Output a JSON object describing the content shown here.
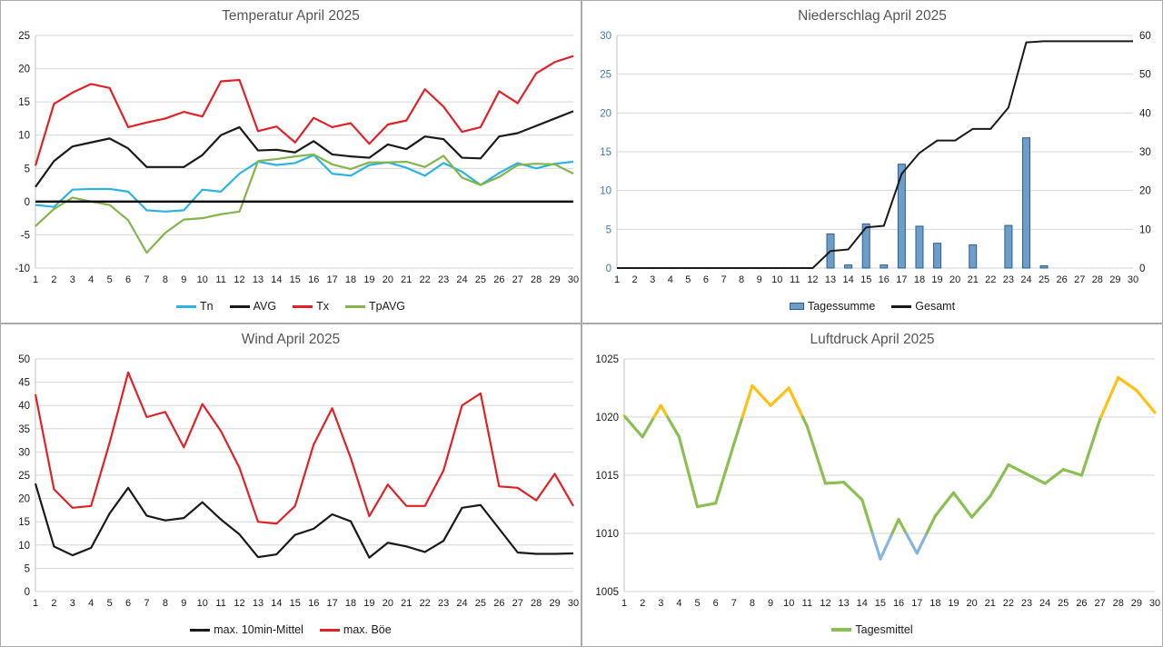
{
  "chart_data": [
    {
      "type": "line",
      "title": "Temperatur April 2025",
      "categories": [
        1,
        2,
        3,
        4,
        5,
        6,
        7,
        8,
        9,
        10,
        11,
        12,
        13,
        14,
        15,
        16,
        17,
        18,
        19,
        20,
        21,
        22,
        23,
        24,
        25,
        26,
        27,
        28,
        29,
        30
      ],
      "ylim": [
        -10,
        25
      ],
      "ystep": 5,
      "zero_line": true,
      "grid": true,
      "legend_position": "bottom",
      "series": [
        {
          "name": "Tn",
          "color": "#2bb4e0",
          "values": [
            -0.5,
            -0.8,
            1.8,
            1.9,
            1.9,
            1.5,
            -1.3,
            -1.5,
            -1.3,
            1.8,
            1.5,
            4.2,
            6.0,
            5.5,
            5.8,
            7.0,
            4.2,
            3.9,
            5.5,
            5.9,
            5.1,
            3.9,
            5.8,
            4.5,
            2.5,
            4.3,
            5.8,
            5.0,
            5.7,
            6.0
          ]
        },
        {
          "name": "AVG",
          "color": "#1a1a1a",
          "values": [
            2.2,
            6.1,
            8.3,
            8.9,
            9.5,
            8.0,
            5.2,
            5.2,
            5.2,
            7.0,
            10.0,
            11.2,
            7.7,
            7.8,
            7.4,
            9.1,
            7.1,
            6.8,
            6.6,
            8.6,
            7.9,
            9.8,
            9.4,
            6.6,
            6.5,
            9.8,
            10.3,
            11.4,
            12.5,
            13.6
          ]
        },
        {
          "name": "Tx",
          "color": "#e02227",
          "values": [
            5.4,
            14.7,
            16.4,
            17.7,
            17.1,
            11.2,
            11.9,
            12.5,
            13.5,
            12.8,
            18.1,
            18.3,
            10.6,
            11.3,
            8.9,
            12.6,
            11.2,
            11.8,
            8.7,
            11.6,
            12.2,
            16.9,
            14.3,
            10.5,
            11.2,
            16.6,
            14.8,
            19.3,
            21.0,
            21.9
          ]
        },
        {
          "name": "TpAVG",
          "color": "#85b44a",
          "values": [
            -3.7,
            -1.1,
            0.6,
            0.0,
            -0.5,
            -2.8,
            -7.7,
            -4.7,
            -2.7,
            -2.5,
            -1.9,
            -1.5,
            6.1,
            6.4,
            6.8,
            7.1,
            5.6,
            4.9,
            5.9,
            5.9,
            6.0,
            5.2,
            6.9,
            3.6,
            2.5,
            3.7,
            5.5,
            5.7,
            5.6,
            4.2
          ]
        }
      ]
    },
    {
      "type": "bar-line",
      "title": "Niederschlag April 2025",
      "categories": [
        1,
        2,
        3,
        4,
        5,
        6,
        7,
        8,
        9,
        10,
        11,
        12,
        13,
        14,
        15,
        16,
        17,
        18,
        19,
        20,
        21,
        22,
        23,
        24,
        25,
        26,
        27,
        28,
        29,
        30
      ],
      "ylim": [
        0,
        30
      ],
      "ystep": 5,
      "yaxis_color": "#3e7ba9",
      "right_ylim": [
        0,
        60
      ],
      "right_ystep": 10,
      "grid": true,
      "legend_position": "bottom",
      "bars": {
        "name": "Tagessumme",
        "color": "#6d9dc9",
        "border": "#2e5d8e",
        "values": [
          0,
          0,
          0,
          0,
          0,
          0,
          0,
          0,
          0,
          0,
          0,
          0,
          4.4,
          0.4,
          5.7,
          0.4,
          13.4,
          5.4,
          3.2,
          0,
          3.0,
          0,
          5.5,
          16.8,
          0.3,
          0,
          0,
          0,
          0,
          0
        ]
      },
      "line": {
        "name": "Gesamt",
        "color": "#1a1a1a",
        "axis": "right",
        "values": [
          0,
          0,
          0,
          0,
          0,
          0,
          0,
          0,
          0,
          0,
          0,
          0,
          4.4,
          4.8,
          10.5,
          10.9,
          24.3,
          29.7,
          32.9,
          32.9,
          35.9,
          35.9,
          41.4,
          58.2,
          58.5,
          58.5,
          58.5,
          58.5,
          58.5,
          58.5
        ]
      }
    },
    {
      "type": "line",
      "title": "Wind April 2025",
      "categories": [
        1,
        2,
        3,
        4,
        5,
        6,
        7,
        8,
        9,
        10,
        11,
        12,
        13,
        14,
        15,
        16,
        17,
        18,
        19,
        20,
        21,
        22,
        23,
        24,
        25,
        26,
        27,
        28,
        29,
        30
      ],
      "ylim": [
        0,
        50
      ],
      "ystep": 5,
      "grid": true,
      "legend_position": "bottom",
      "series": [
        {
          "name": "max. 10min-Mittel",
          "color": "#1a1a1a",
          "values": [
            23.2,
            9.7,
            7.8,
            9.4,
            16.8,
            22.3,
            16.3,
            15.3,
            15.8,
            19.2,
            15.5,
            12.3,
            7.4,
            8.0,
            12.2,
            13.5,
            16.6,
            15.1,
            7.3,
            10.5,
            9.7,
            8.5,
            10.9,
            18.0,
            18.6,
            13.5,
            8.4,
            8.1,
            8.1,
            8.2
          ]
        },
        {
          "name": "max. Böe",
          "color": "#e02227",
          "values": [
            42.4,
            22.0,
            18.0,
            18.4,
            32.0,
            47.1,
            37.5,
            38.6,
            31.0,
            40.3,
            34.5,
            26.6,
            15.0,
            14.6,
            18.4,
            31.6,
            39.4,
            28.7,
            16.2,
            23.0,
            18.4,
            18.4,
            26.0,
            40.0,
            42.6,
            22.6,
            22.3,
            19.6,
            25.3,
            18.4
          ]
        }
      ]
    },
    {
      "type": "cond-line",
      "title": "Luftdruck April 2025",
      "categories": [
        1,
        2,
        3,
        4,
        5,
        6,
        7,
        8,
        9,
        10,
        11,
        12,
        13,
        14,
        15,
        16,
        17,
        18,
        19,
        20,
        21,
        22,
        23,
        24,
        25,
        26,
        27,
        28,
        29,
        30
      ],
      "ylim": [
        1005,
        1025
      ],
      "ystep": 5,
      "margin_left": 46,
      "grid": true,
      "legend_position": "bottom",
      "series": [
        {
          "name": "Tagesmittel",
          "color": "#8bbf52",
          "color_high": "#fdc013",
          "color_low": "#88b4dd",
          "threshold_high": 1020,
          "threshold_low": 1010,
          "values": [
            1020.1,
            1018.3,
            1021.0,
            1018.3,
            1012.3,
            1012.6,
            1017.7,
            1022.7,
            1021.0,
            1022.5,
            1019.2,
            1014.3,
            1014.4,
            1012.9,
            1007.8,
            1011.2,
            1008.3,
            1011.5,
            1013.5,
            1011.4,
            1013.2,
            1015.9,
            1015.1,
            1014.3,
            1015.5,
            1015.0,
            1019.8,
            1023.4,
            1022.3,
            1020.4
          ]
        }
      ]
    }
  ]
}
